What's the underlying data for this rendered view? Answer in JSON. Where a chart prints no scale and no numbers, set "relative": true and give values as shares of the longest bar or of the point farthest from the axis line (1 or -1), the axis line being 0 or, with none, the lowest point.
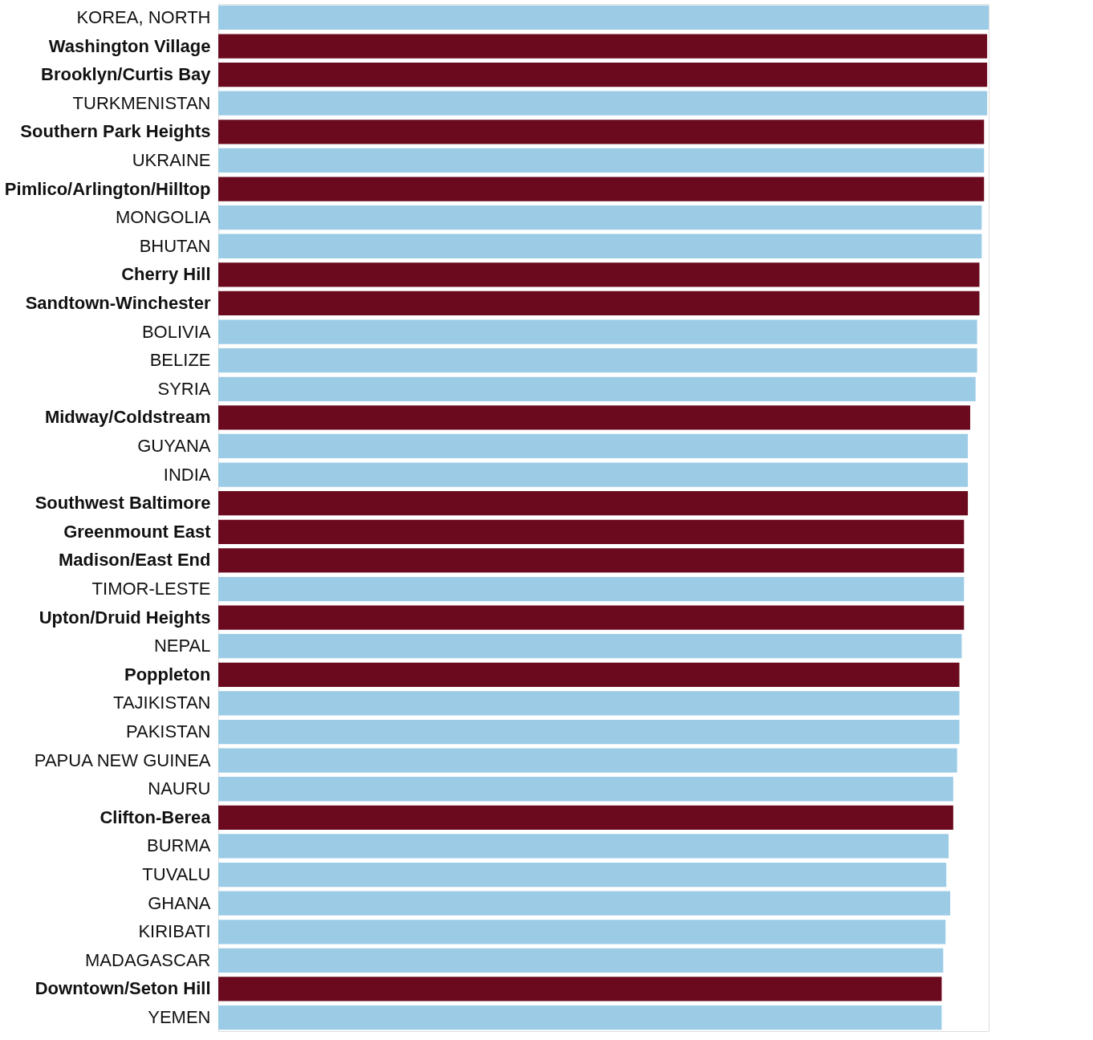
{
  "chart_data": {
    "type": "bar",
    "orientation": "horizontal",
    "relative": true,
    "categories": [
      "KOREA, NORTH",
      "Washington Village",
      "Brooklyn/Curtis Bay",
      "TURKMENISTAN",
      "Southern Park Heights",
      "UKRAINE",
      "Pimlico/Arlington/Hilltop",
      "MONGOLIA",
      "BHUTAN",
      "Cherry Hill",
      "Sandtown-Winchester",
      "BOLIVIA",
      "BELIZE",
      "SYRIA",
      "Midway/Coldstream",
      "GUYANA",
      "INDIA",
      "Southwest Baltimore",
      "Greenmount East",
      "Madison/East End",
      "TIMOR-LESTE",
      "Upton/Druid Heights",
      "NEPAL",
      "Poppleton",
      "TAJIKISTAN",
      "PAKISTAN",
      "PAPUA NEW GUINEA",
      "NAURU",
      "Clifton-Berea",
      "BURMA",
      "TUVALU",
      "GHANA",
      "KIRIBATI",
      "MADAGASCAR",
      "Downtown/Seton Hill",
      "YEMEN"
    ],
    "series": [
      {
        "color": "#6b0a1e",
        "values": [
          null,
          0.998,
          0.998,
          null,
          0.994,
          null,
          0.994,
          null,
          null,
          0.988,
          0.988,
          null,
          null,
          null,
          0.976,
          null,
          null,
          0.973,
          0.968,
          0.968,
          null,
          0.968,
          null,
          0.962,
          null,
          null,
          null,
          null,
          0.954,
          null,
          null,
          null,
          null,
          null,
          0.939,
          null
        ]
      },
      {
        "color": "#9ccbe6",
        "values": [
          1,
          null,
          null,
          0.998,
          null,
          0.994,
          null,
          0.991,
          0.991,
          null,
          null,
          0.985,
          0.985,
          0.983,
          null,
          0.973,
          0.973,
          null,
          null,
          null,
          0.968,
          null,
          0.965,
          null,
          0.962,
          0.962,
          0.959,
          0.954,
          null,
          0.948,
          0.945,
          0.95,
          0.944,
          0.941,
          null,
          0.939
        ]
      }
    ]
  }
}
